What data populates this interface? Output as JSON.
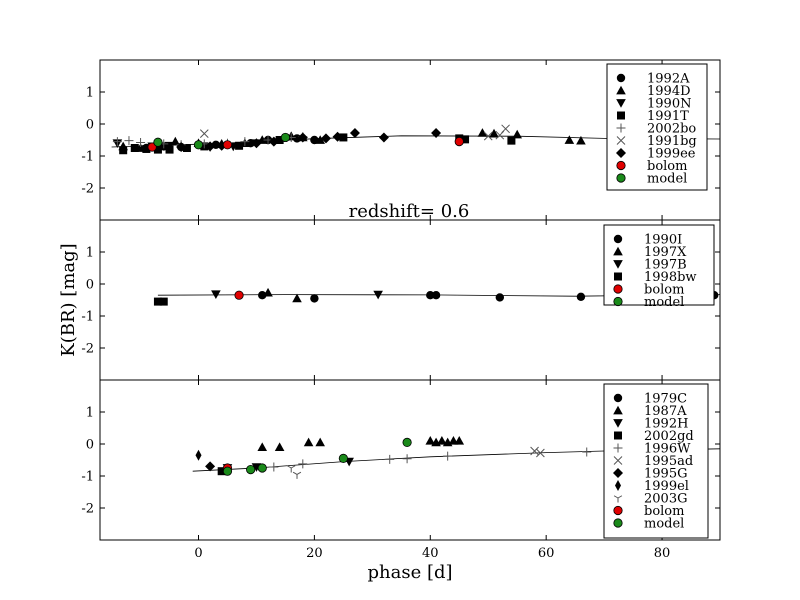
{
  "colors": {
    "bolom": "#e00000",
    "model": "#1a8a1a",
    "marker": "#000000",
    "template_line": "#000000",
    "cross_marker": "#555555"
  },
  "chart_data": {
    "type": "scatter",
    "xlabel": "phase [d]",
    "ylabel": "K(BR) [mag]",
    "xlim": [
      -17,
      90
    ],
    "x_ticks": [
      0,
      20,
      40,
      60,
      80
    ],
    "ylim": [
      -3,
      2
    ],
    "y_ticks": [
      1,
      0,
      -1,
      -2
    ],
    "annotation": "redshift= 0.6",
    "panels": [
      {
        "name": "panel-1",
        "template_line": [
          [
            -15,
            -0.72
          ],
          [
            0,
            -0.63
          ],
          [
            10,
            -0.56
          ],
          [
            20,
            -0.46
          ],
          [
            35,
            -0.37
          ],
          [
            55,
            -0.38
          ],
          [
            70,
            -0.45
          ],
          [
            90,
            -0.47
          ]
        ],
        "series": [
          {
            "name": "1992A",
            "marker": "circle",
            "points": [
              [
                -9,
                -0.75
              ],
              [
                -6,
                -0.7
              ],
              [
                -3,
                -0.72
              ],
              [
                3,
                -0.65
              ],
              [
                9,
                -0.6
              ],
              [
                12,
                -0.5
              ],
              [
                17,
                -0.45
              ],
              [
                20,
                -0.5
              ]
            ]
          },
          {
            "name": "1994D",
            "marker": "triangle-up",
            "points": [
              [
                -13,
                -0.7
              ],
              [
                -10,
                -0.75
              ],
              [
                -7,
                -0.65
              ],
              [
                -4,
                -0.55
              ],
              [
                0,
                -0.6
              ],
              [
                4,
                -0.62
              ],
              [
                8,
                -0.6
              ],
              [
                11,
                -0.5
              ],
              [
                16,
                -0.38
              ],
              [
                18,
                -0.42
              ],
              [
                21,
                -0.5
              ],
              [
                49,
                -0.28
              ],
              [
                51,
                -0.3
              ],
              [
                55,
                -0.33
              ],
              [
                64,
                -0.5
              ],
              [
                66,
                -0.52
              ]
            ]
          },
          {
            "name": "1990N",
            "marker": "triangle-down",
            "points": [
              [
                -14,
                -0.6
              ],
              [
                -8,
                -0.7
              ],
              [
                -5,
                -0.68
              ],
              [
                2,
                -0.72
              ],
              [
                6,
                -0.7
              ],
              [
                10,
                -0.6
              ]
            ]
          },
          {
            "name": "1991T",
            "marker": "square",
            "points": [
              [
                -13,
                -0.82
              ],
              [
                -11,
                -0.75
              ],
              [
                -9,
                -0.78
              ],
              [
                -7,
                -0.8
              ],
              [
                -5,
                -0.8
              ],
              [
                -2,
                -0.75
              ],
              [
                1,
                -0.7
              ],
              [
                7,
                -0.68
              ],
              [
                14,
                -0.5
              ],
              [
                25,
                -0.42
              ],
              [
                45,
                -0.45
              ],
              [
                46,
                -0.48
              ],
              [
                54,
                -0.52
              ]
            ]
          },
          {
            "name": "2002bo",
            "marker": "plus",
            "points": [
              [
                -14,
                -0.55
              ],
              [
                -12,
                -0.52
              ],
              [
                -10,
                -0.58
              ],
              [
                -6,
                -0.62
              ],
              [
                -3,
                -0.65
              ],
              [
                1,
                -0.62
              ],
              [
                5,
                -0.6
              ],
              [
                8,
                -0.55
              ],
              [
                12,
                -0.5
              ],
              [
                16,
                -0.42
              ],
              [
                18,
                -0.4
              ]
            ]
          },
          {
            "name": "1991bg",
            "marker": "x",
            "points": [
              [
                1,
                -0.3
              ],
              [
                50,
                -0.38
              ],
              [
                53,
                -0.15
              ],
              [
                52,
                -0.35
              ]
            ]
          },
          {
            "name": "1999ee",
            "marker": "diamond",
            "points": [
              [
                -3,
                -0.72
              ],
              [
                2,
                -0.7
              ],
              [
                4,
                -0.68
              ],
              [
                10,
                -0.6
              ],
              [
                13,
                -0.55
              ],
              [
                18,
                -0.42
              ],
              [
                22,
                -0.45
              ],
              [
                24,
                -0.4
              ],
              [
                27,
                -0.28
              ],
              [
                32,
                -0.42
              ],
              [
                41,
                -0.28
              ]
            ]
          },
          {
            "name": "bolom",
            "marker": "circle-color",
            "color": "bolom",
            "points": [
              [
                -8,
                -0.72
              ],
              [
                5,
                -0.65
              ],
              [
                45,
                -0.55
              ]
            ]
          },
          {
            "name": "model",
            "marker": "circle-color",
            "color": "model",
            "points": [
              [
                -7,
                -0.57
              ],
              [
                0,
                -0.65
              ],
              [
                15,
                -0.42
              ]
            ]
          }
        ]
      },
      {
        "name": "panel-2",
        "template_line": [
          [
            -7,
            -0.35
          ],
          [
            15,
            -0.33
          ],
          [
            40,
            -0.34
          ],
          [
            65,
            -0.38
          ],
          [
            90,
            -0.33
          ]
        ],
        "series": [
          {
            "name": "1990I",
            "marker": "circle",
            "points": [
              [
                11,
                -0.35
              ],
              [
                20,
                -0.45
              ],
              [
                40,
                -0.35
              ],
              [
                41,
                -0.35
              ],
              [
                52,
                -0.42
              ],
              [
                66,
                -0.4
              ],
              [
                89,
                -0.35
              ]
            ]
          },
          {
            "name": "1997X",
            "marker": "triangle-up",
            "points": [
              [
                12,
                -0.27
              ],
              [
                17,
                -0.45
              ]
            ]
          },
          {
            "name": "1997B",
            "marker": "triangle-down",
            "points": [
              [
                3,
                -0.32
              ],
              [
                31,
                -0.33
              ]
            ]
          },
          {
            "name": "1998bw",
            "marker": "square",
            "points": [
              [
                -7,
                -0.55
              ],
              [
                -6,
                -0.55
              ]
            ]
          },
          {
            "name": "bolom",
            "marker": "circle-color",
            "color": "bolom",
            "points": [
              [
                7,
                -0.35
              ]
            ]
          },
          {
            "name": "model",
            "marker": "circle-color",
            "color": "model",
            "points": []
          }
        ]
      },
      {
        "name": "panel-3",
        "template_line": [
          [
            -1,
            -0.85
          ],
          [
            10,
            -0.75
          ],
          [
            25,
            -0.55
          ],
          [
            40,
            -0.4
          ],
          [
            60,
            -0.27
          ],
          [
            70,
            -0.22
          ],
          [
            90,
            -0.15
          ]
        ],
        "series": [
          {
            "name": "1979C",
            "marker": "circle",
            "points": []
          },
          {
            "name": "1987A",
            "marker": "triangle-up",
            "points": [
              [
                11,
                -0.1
              ],
              [
                14,
                -0.1
              ],
              [
                19,
                0.05
              ],
              [
                21,
                0.05
              ],
              [
                40,
                0.1
              ],
              [
                41,
                0.05
              ],
              [
                42,
                0.1
              ],
              [
                43,
                0.05
              ],
              [
                44,
                0.1
              ],
              [
                45,
                0.1
              ]
            ]
          },
          {
            "name": "1992H",
            "marker": "triangle-down",
            "points": [
              [
                5,
                -0.75
              ],
              [
                10,
                -0.72
              ],
              [
                26,
                -0.55
              ]
            ]
          },
          {
            "name": "2002gd",
            "marker": "square",
            "points": [
              [
                4,
                -0.85
              ]
            ]
          },
          {
            "name": "1996W",
            "marker": "plus",
            "points": [
              [
                13,
                -0.72
              ],
              [
                18,
                -0.62
              ],
              [
                33,
                -0.48
              ],
              [
                36,
                -0.46
              ],
              [
                43,
                -0.38
              ],
              [
                67,
                -0.25
              ]
            ]
          },
          {
            "name": "1995ad",
            "marker": "x",
            "points": [
              [
                58,
                -0.22
              ],
              [
                59,
                -0.28
              ]
            ]
          },
          {
            "name": "1995G",
            "marker": "diamond",
            "points": [
              [
                2,
                -0.7
              ]
            ]
          },
          {
            "name": "1999el",
            "marker": "thin-diamond",
            "points": [
              [
                0,
                -0.35
              ]
            ]
          },
          {
            "name": "2003G",
            "marker": "tri-down",
            "points": [
              [
                16,
                -0.75
              ],
              [
                17,
                -0.95
              ]
            ]
          },
          {
            "name": "bolom",
            "marker": "circle-color",
            "color": "bolom",
            "points": [
              [
                5,
                -0.75
              ]
            ]
          },
          {
            "name": "model",
            "marker": "circle-color",
            "color": "model",
            "points": [
              [
                5,
                -0.85
              ],
              [
                9,
                -0.8
              ],
              [
                11,
                -0.75
              ],
              [
                25,
                -0.45
              ],
              [
                36,
                0.05
              ]
            ]
          }
        ]
      }
    ]
  }
}
